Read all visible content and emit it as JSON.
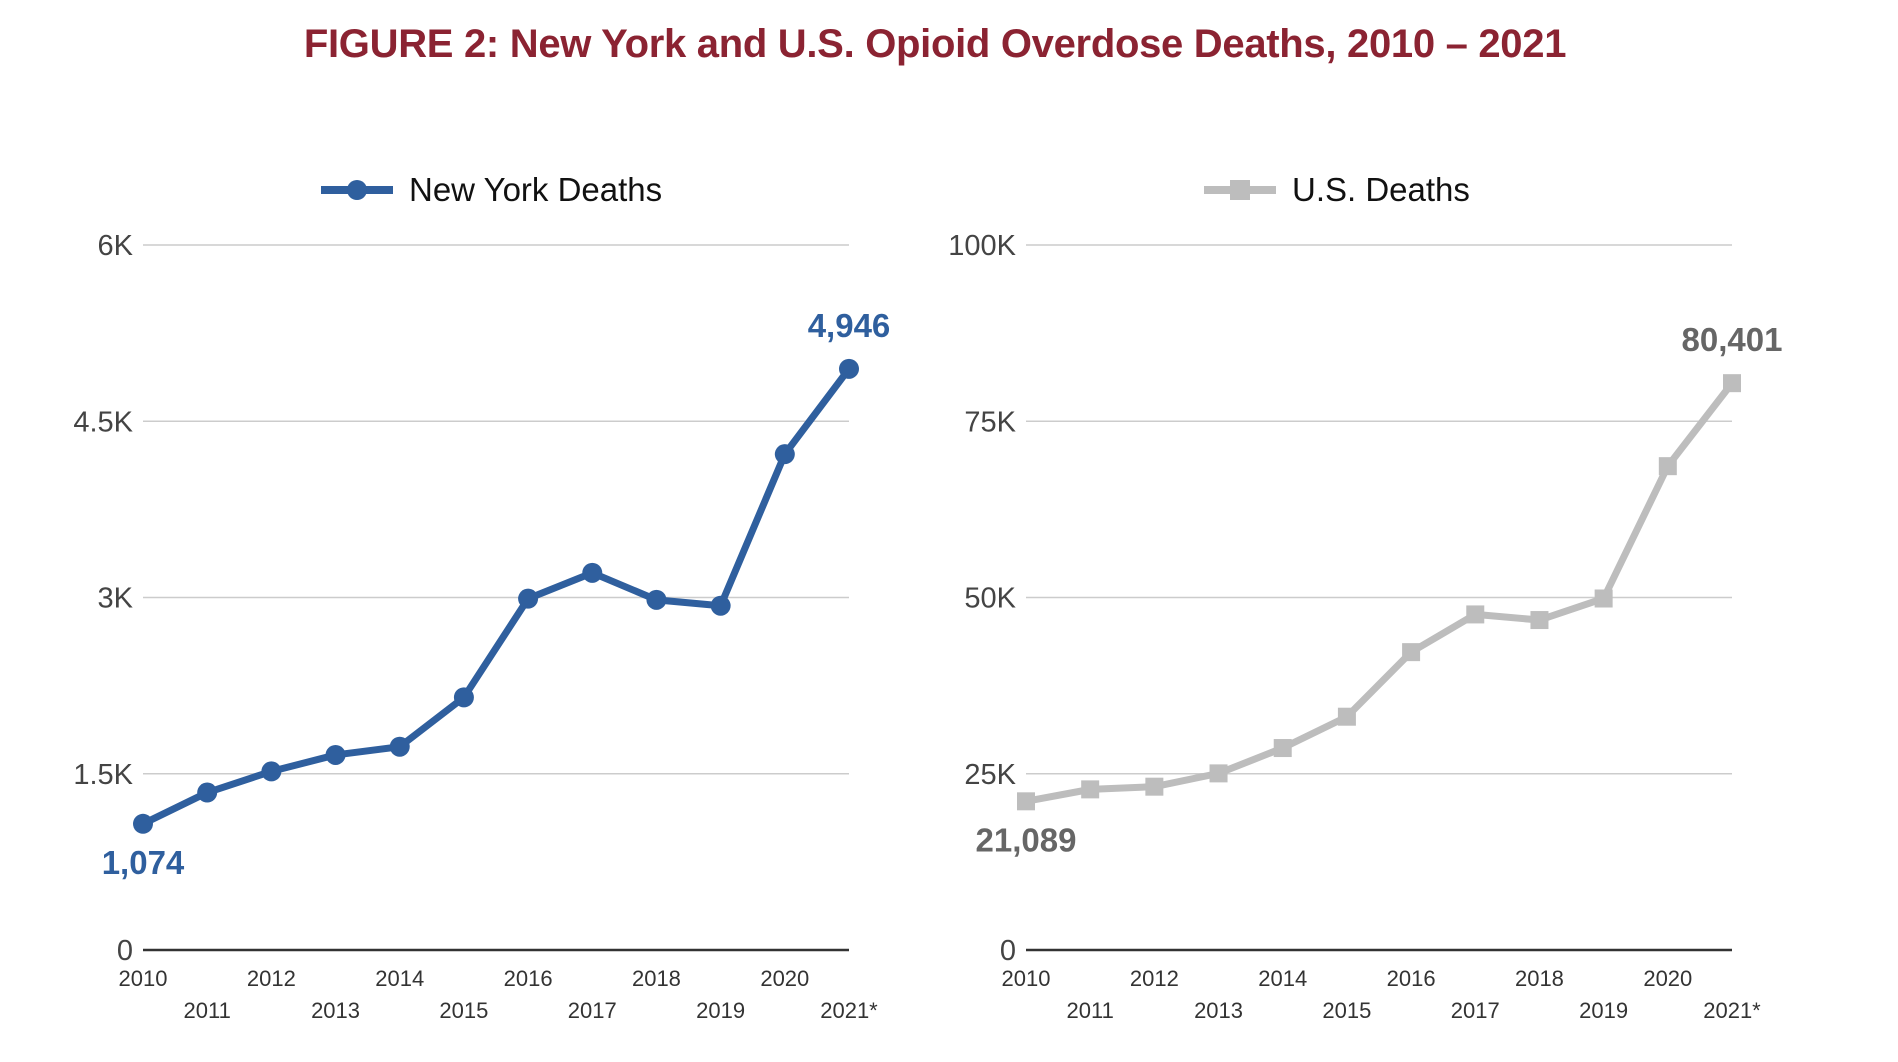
{
  "title": "FIGURE 2: New York and U.S. Opioid Overdose Deaths, 2010 – 2021",
  "chart_data": [
    {
      "type": "line",
      "legend": "New York Deaths",
      "legend_position": "top-center",
      "color": "#2F5F9E",
      "marker": "circle",
      "categories": [
        "2010",
        "2011",
        "2012",
        "2013",
        "2014",
        "2015",
        "2016",
        "2017",
        "2018",
        "2019",
        "2020",
        "2021*"
      ],
      "values": [
        1074,
        1340,
        1520,
        1660,
        1730,
        2150,
        2990,
        3210,
        2980,
        2930,
        4220,
        4946
      ],
      "y_ticks": [
        "0",
        "1.5K",
        "3K",
        "4.5K",
        "6K"
      ],
      "y_tick_values": [
        0,
        1500,
        3000,
        4500,
        6000
      ],
      "ylim": [
        0,
        6000
      ],
      "grid": true,
      "data_labels": [
        {
          "index": 0,
          "text": "1,074",
          "placement": "below"
        },
        {
          "index": 11,
          "text": "4,946",
          "placement": "above"
        }
      ],
      "xlabel": "",
      "ylabel": ""
    },
    {
      "type": "line",
      "legend": "U.S. Deaths",
      "legend_position": "top-center",
      "color": "#BDBDBD",
      "label_color": "#666666",
      "marker": "square",
      "categories": [
        "2010",
        "2011",
        "2012",
        "2013",
        "2014",
        "2015",
        "2016",
        "2017",
        "2018",
        "2019",
        "2020",
        "2021*"
      ],
      "values": [
        21089,
        22784,
        23166,
        25052,
        28647,
        33091,
        42249,
        47600,
        46802,
        49860,
        68630,
        80401
      ],
      "y_ticks": [
        "0",
        "25K",
        "50K",
        "75K",
        "100K"
      ],
      "y_tick_values": [
        0,
        25000,
        50000,
        75000,
        100000
      ],
      "ylim": [
        0,
        100000
      ],
      "grid": true,
      "data_labels": [
        {
          "index": 0,
          "text": "21,089",
          "placement": "below"
        },
        {
          "index": 11,
          "text": "80,401",
          "placement": "above"
        }
      ],
      "xlabel": "",
      "ylabel": ""
    }
  ]
}
